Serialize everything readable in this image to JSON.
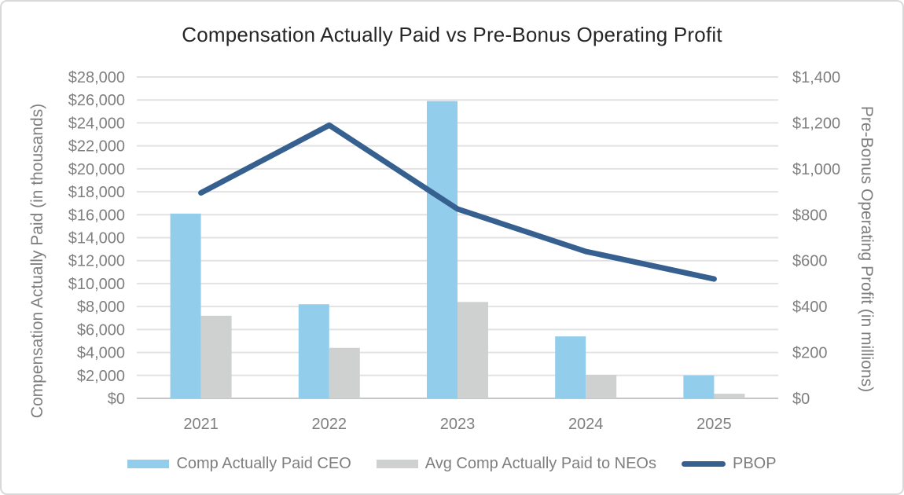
{
  "chart_data": {
    "type": "combo-bar-line",
    "title": "Compensation Actually Paid vs Pre-Bonus Operating Profit",
    "categories": [
      "2021",
      "2022",
      "2023",
      "2024",
      "2025"
    ],
    "series": [
      {
        "name": "Comp Actually Paid CEO",
        "type": "bar",
        "axis": "left",
        "color": "#92cdeb",
        "values": [
          16100,
          8200,
          25900,
          5400,
          2000
        ]
      },
      {
        "name": "Avg Comp Actually Paid to NEOs",
        "type": "bar",
        "axis": "left",
        "color": "#cfd0d0",
        "values": [
          7200,
          4400,
          8400,
          2050,
          400
        ]
      },
      {
        "name": "PBOP",
        "type": "line",
        "axis": "right",
        "color": "#35608f",
        "values": [
          895,
          1190,
          825,
          640,
          520
        ]
      }
    ],
    "left_axis": {
      "title": "Compensation Actually Paid (in thousands)",
      "min": 0,
      "max": 28000,
      "step": 2000,
      "ticks": [
        "$0",
        "$2,000",
        "$4,000",
        "$6,000",
        "$8,000",
        "$10,000",
        "$12,000",
        "$14,000",
        "$16,000",
        "$18,000",
        "$20,000",
        "$22,000",
        "$24,000",
        "$26,000",
        "$28,000"
      ]
    },
    "right_axis": {
      "title": "Pre-Bonus Operating Profit (in millions)",
      "min": 0,
      "max": 1400,
      "step": 200,
      "ticks": [
        "$0",
        "$200",
        "$400",
        "$600",
        "$800",
        "$1,000",
        "$1,200",
        "$1,400"
      ]
    },
    "grid": true,
    "legend_position": "bottom",
    "colors": {
      "gridline": "#e2e2e2",
      "axis_line": "#c6c6c6",
      "tick_text": "#7f7f7f",
      "title_text": "#262626",
      "frame_border": "#d8d8d8"
    }
  }
}
